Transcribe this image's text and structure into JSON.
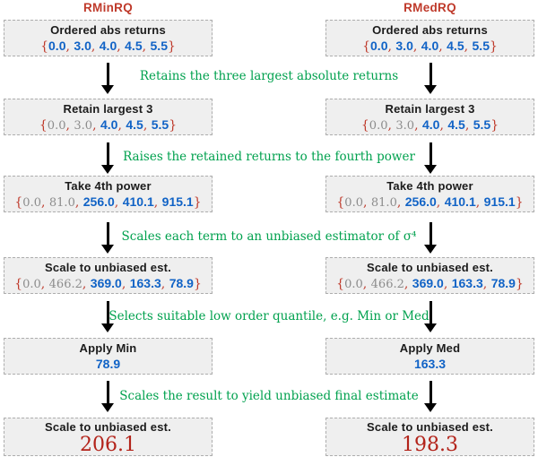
{
  "colors": {
    "title_red": "#bf3a2b",
    "brace_red": "#bf3a2b",
    "value_blue": "#1163c6",
    "muted_gray": "#8c8c8c",
    "green": "#00a14e",
    "final_red": "#b3231a",
    "box_bg": "#efefef",
    "box_border": "#adadad"
  },
  "figure": {
    "set_notation": {
      "open": "{",
      "close": "}",
      "separator": ","
    },
    "annotations": [
      "Retains the three largest absolute returns",
      "Raises the retained returns to the fourth power",
      "Scales each term to an unbiased estimator of σ⁴",
      "Selects suitable low order quantile, e.g. Min or Med",
      "Scales the result to yield unbiased final estimate"
    ],
    "columns": [
      {
        "title": "RMinRQ",
        "boxes": [
          {
            "label": "Ordered abs returns",
            "set": [
              {
                "v": "0.0",
                "muted": false
              },
              {
                "v": "3.0",
                "muted": false
              },
              {
                "v": "4.0",
                "muted": false
              },
              {
                "v": "4.5",
                "muted": false
              },
              {
                "v": "5.5",
                "muted": false
              }
            ]
          },
          {
            "label": "Retain largest 3",
            "set": [
              {
                "v": "0.0",
                "muted": true
              },
              {
                "v": "3.0",
                "muted": true
              },
              {
                "v": "4.0",
                "muted": false
              },
              {
                "v": "4.5",
                "muted": false
              },
              {
                "v": "5.5",
                "muted": false
              }
            ]
          },
          {
            "label": "Take 4th power",
            "set": [
              {
                "v": "0.0",
                "muted": true
              },
              {
                "v": "81.0",
                "muted": true
              },
              {
                "v": "256.0",
                "muted": false
              },
              {
                "v": "410.1",
                "muted": false
              },
              {
                "v": "915.1",
                "muted": false
              }
            ]
          },
          {
            "label": "Scale to unbiased est.",
            "set": [
              {
                "v": "0.0",
                "muted": true
              },
              {
                "v": "466.2",
                "muted": true
              },
              {
                "v": "369.0",
                "muted": false
              },
              {
                "v": "163.3",
                "muted": false
              },
              {
                "v": "78.9",
                "muted": false
              }
            ]
          },
          {
            "label": "Apply Min",
            "value": "78.9"
          },
          {
            "label": "Scale to unbiased est.",
            "final_value": "206.1"
          }
        ]
      },
      {
        "title": "RMedRQ",
        "boxes": [
          {
            "label": "Ordered abs returns",
            "set": [
              {
                "v": "0.0",
                "muted": false
              },
              {
                "v": "3.0",
                "muted": false
              },
              {
                "v": "4.0",
                "muted": false
              },
              {
                "v": "4.5",
                "muted": false
              },
              {
                "v": "5.5",
                "muted": false
              }
            ]
          },
          {
            "label": "Retain largest 3",
            "set": [
              {
                "v": "0.0",
                "muted": true
              },
              {
                "v": "3.0",
                "muted": true
              },
              {
                "v": "4.0",
                "muted": false
              },
              {
                "v": "4.5",
                "muted": false
              },
              {
                "v": "5.5",
                "muted": false
              }
            ]
          },
          {
            "label": "Take 4th power",
            "set": [
              {
                "v": "0.0",
                "muted": true
              },
              {
                "v": "81.0",
                "muted": true
              },
              {
                "v": "256.0",
                "muted": false
              },
              {
                "v": "410.1",
                "muted": false
              },
              {
                "v": "915.1",
                "muted": false
              }
            ]
          },
          {
            "label": "Scale to unbiased est.",
            "set": [
              {
                "v": "0.0",
                "muted": true
              },
              {
                "v": "466.2",
                "muted": true
              },
              {
                "v": "369.0",
                "muted": false
              },
              {
                "v": "163.3",
                "muted": false
              },
              {
                "v": "78.9",
                "muted": false
              }
            ]
          },
          {
            "label": "Apply Med",
            "value": "163.3"
          },
          {
            "label": "Scale to unbiased est.",
            "final_value": "198.3"
          }
        ]
      }
    ]
  }
}
